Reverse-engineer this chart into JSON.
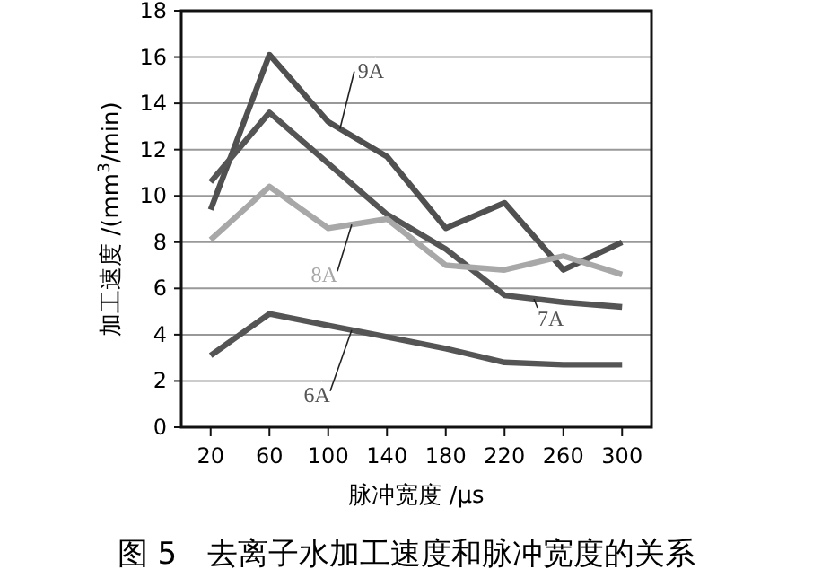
{
  "chart_data": {
    "type": "line",
    "title": "图 5　去离子水加工速度和脉冲宽度的关系",
    "xlabel": "脉冲宽度 /μs",
    "ylabel": "加工速度 /(mm$^{3}$/min)",
    "categories": [
      "20",
      "60",
      "100",
      "140",
      "180",
      "220",
      "260",
      "300"
    ],
    "ylim": [
      0,
      18
    ],
    "yticks": [
      0,
      2,
      4,
      6,
      8,
      10,
      12,
      14,
      16,
      18
    ],
    "grid": "y",
    "marker": "none",
    "line_style": "solid",
    "series": [
      {
        "name": "9A",
        "color": "#505050",
        "values": [
          9.4,
          16.1,
          13.2,
          11.7,
          8.6,
          9.7,
          6.8,
          8.0
        ]
      },
      {
        "name": "7A",
        "color": "#555555",
        "values": [
          10.6,
          13.6,
          11.4,
          9.2,
          7.7,
          5.7,
          5.4,
          5.2
        ]
      },
      {
        "name": "8A",
        "color": "#a8a8a8",
        "values": [
          8.1,
          10.4,
          8.6,
          9.0,
          7.0,
          6.8,
          7.4,
          6.6
        ]
      },
      {
        "name": "6A",
        "color": "#555555",
        "values": [
          3.1,
          4.9,
          4.4,
          3.9,
          3.4,
          2.8,
          2.7,
          2.7
        ]
      }
    ]
  }
}
